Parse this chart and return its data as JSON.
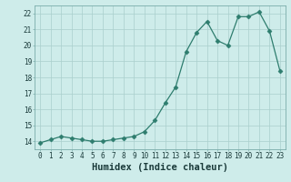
{
  "x": [
    0,
    1,
    2,
    3,
    4,
    5,
    6,
    7,
    8,
    9,
    10,
    11,
    12,
    13,
    14,
    15,
    16,
    17,
    18,
    19,
    20,
    21,
    22,
    23
  ],
  "y": [
    13.9,
    14.1,
    14.3,
    14.2,
    14.1,
    14.0,
    14.0,
    14.1,
    14.2,
    14.3,
    14.6,
    15.3,
    16.4,
    17.4,
    19.6,
    20.8,
    21.5,
    20.3,
    20.0,
    21.8,
    21.8,
    22.1,
    20.9,
    18.4
  ],
  "xlabel": "Humidex (Indice chaleur)",
  "xlim": [
    -0.5,
    23.5
  ],
  "ylim": [
    13.5,
    22.5
  ],
  "yticks": [
    14,
    15,
    16,
    17,
    18,
    19,
    20,
    21,
    22
  ],
  "xticks": [
    0,
    1,
    2,
    3,
    4,
    5,
    6,
    7,
    8,
    9,
    10,
    11,
    12,
    13,
    14,
    15,
    16,
    17,
    18,
    19,
    20,
    21,
    22,
    23
  ],
  "line_color": "#2e7d6e",
  "marker": "D",
  "marker_size": 2.5,
  "bg_color": "#ceecea",
  "grid_color": "#aacfcc",
  "tick_fontsize": 5.5,
  "xlabel_fontsize": 7.5
}
